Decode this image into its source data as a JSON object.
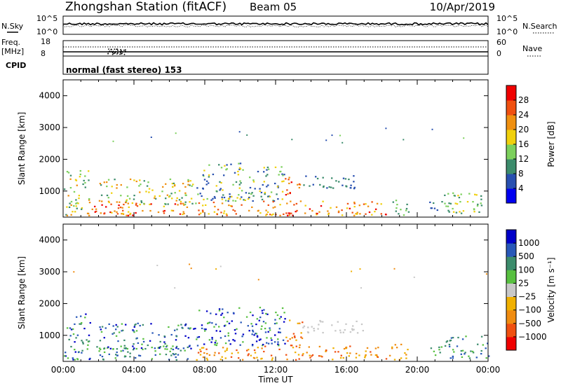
{
  "header": {
    "station": "Zhongshan Station (fitACF)",
    "beam": "Beam 05",
    "date": "10/Apr/2019"
  },
  "summary": {
    "nsky_label": "N.Sky",
    "nsearch_label": "N.Search",
    "nsky_ticks": [
      "10^5",
      "10^0"
    ],
    "nsearch_ticks": [
      "10^5",
      "10^0"
    ],
    "freq_label_line1": "Freq.",
    "freq_label_line2": "[MHz]",
    "freq_ticks": [
      "18",
      "8"
    ],
    "nave_label": "Nave",
    "nave_ticks": [
      "60",
      "0"
    ],
    "cpid_label": "CPID",
    "cpid_text": "normal (fast stereo) 153"
  },
  "chart_data": [
    {
      "type": "heatmap",
      "name": "power",
      "ylabel": "Slant Range [km]",
      "xlabel": "",
      "ylim": [
        180,
        4500
      ],
      "yticks": [
        "1000",
        "2000",
        "3000",
        "4000"
      ],
      "colorbar": {
        "label": "Power [dB]",
        "ticks": [
          "4",
          "8",
          "12",
          "16",
          "20",
          "24",
          "28"
        ],
        "colors": [
          "#0000f0",
          "#2850b0",
          "#3c8c6c",
          "#7cd05c",
          "#f0d00c",
          "#f09010",
          "#f05010",
          "#f00000"
        ]
      }
    },
    {
      "type": "heatmap",
      "name": "velocity",
      "ylabel": "Slant Range [km]",
      "xlabel": "Time UT",
      "ylim": [
        180,
        4500
      ],
      "yticks": [
        "1000",
        "2000",
        "3000",
        "4000"
      ],
      "xticks": [
        "00:00",
        "04:00",
        "08:00",
        "12:00",
        "16:00",
        "20:00",
        "00:00"
      ],
      "colorbar": {
        "label": "Velocity [m s⁻¹]",
        "ticks": [
          "1000",
          "500",
          "100",
          "25",
          "−25",
          "−100",
          "−500",
          "−1000"
        ],
        "colors": [
          "#0000c8",
          "#2858b8",
          "#3c8c6c",
          "#58c040",
          "#c8c8c8",
          "#f0b000",
          "#f08c10",
          "#f05010",
          "#f00000"
        ]
      }
    }
  ]
}
